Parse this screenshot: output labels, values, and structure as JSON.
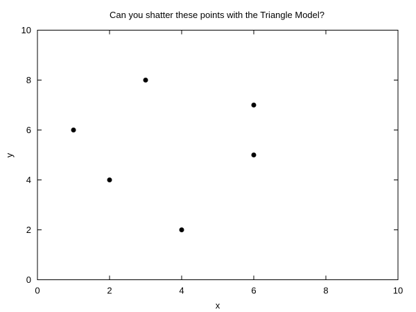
{
  "chart_data": {
    "type": "scatter",
    "title": "Can you shatter these points with the Triangle Model?",
    "xlabel": "x",
    "ylabel": "y",
    "xlim": [
      0,
      10
    ],
    "ylim": [
      0,
      10
    ],
    "xticks": [
      0,
      2,
      4,
      6,
      8,
      10
    ],
    "yticks": [
      0,
      2,
      4,
      6,
      8,
      10
    ],
    "grid": false,
    "series": [
      {
        "color": "#000000",
        "points": [
          {
            "x": 1,
            "y": 6
          },
          {
            "x": 2,
            "y": 4
          },
          {
            "x": 3,
            "y": 8
          },
          {
            "x": 4,
            "y": 2
          },
          {
            "x": 6,
            "y": 7
          },
          {
            "x": 6,
            "y": 5
          }
        ]
      }
    ]
  }
}
